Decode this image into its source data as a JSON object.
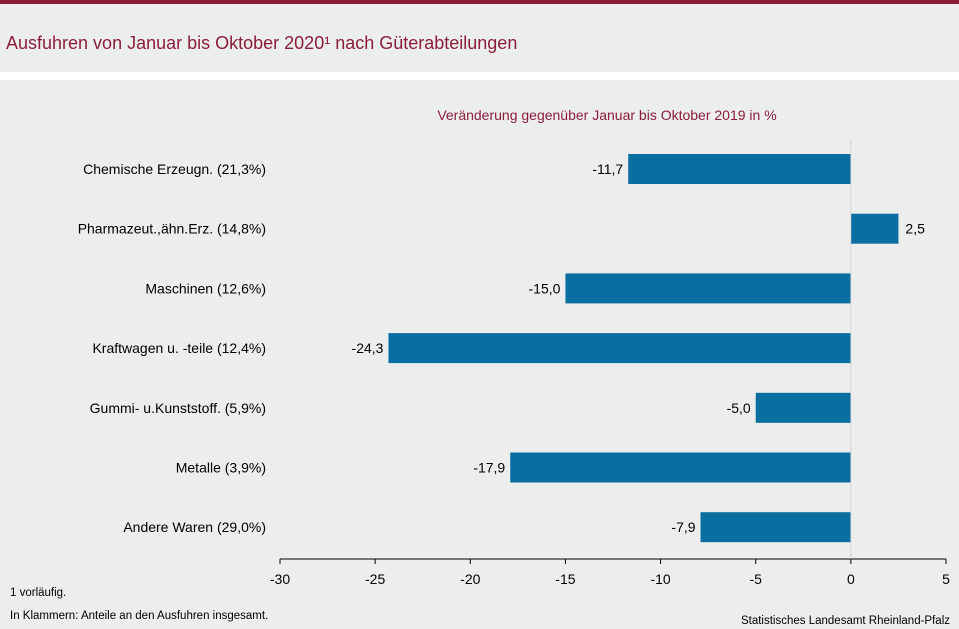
{
  "header": {
    "title": "Ausfuhren von Januar bis Oktober 2020¹ nach Güterabteilungen"
  },
  "colors": {
    "accent": "#8c1d3a",
    "bar": "#0a6fa0",
    "background": "#eceeed"
  },
  "chart_data": {
    "type": "bar",
    "orientation": "horizontal",
    "subtitle": "Veränderung gegenüber Januar bis Oktober 2019 in %",
    "categories": [
      "Chemische Erzeugn. (21,3%)",
      "Pharmazeut.,ähn.Erz. (14,8%)",
      "Maschinen (12,6%)",
      "Kraftwagen u. -teile (12,4%)",
      "Gummi- u.Kunststoff. (5,9%)",
      "Metalle (3,9%)",
      "Andere Waren (29,0%)"
    ],
    "values": [
      -11.7,
      2.5,
      -15.0,
      -24.3,
      -5.0,
      -17.9,
      -7.9
    ],
    "value_labels": [
      "-11,7",
      "2,5",
      "-15,0",
      "-24,3",
      "-5,0",
      "-17,9",
      "-7,9"
    ],
    "xlim": [
      -30,
      5
    ],
    "ticks": [
      -30,
      -25,
      -20,
      -15,
      -10,
      -5,
      0,
      5
    ],
    "tick_labels": [
      "-30",
      "-25",
      "-20",
      "-15",
      "-10",
      "-5",
      "0",
      "5"
    ],
    "grid": false
  },
  "footer": {
    "note1": "1 vorläufig.",
    "note2": "In Klammern: Anteile an den Ausfuhren insgesamt.",
    "source": "Statistisches Landesamt Rheinland-Pfalz"
  }
}
